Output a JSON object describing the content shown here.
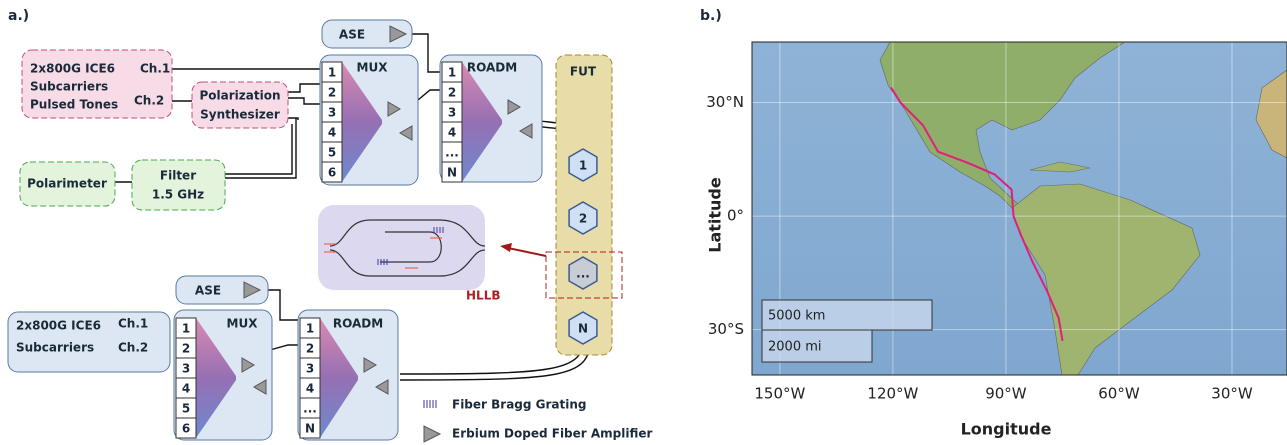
{
  "panel_a": {
    "label": "a.)",
    "transmitter_top": {
      "lines": [
        "2x800G ICE6",
        "Subcarriers",
        "Pulsed Tones"
      ],
      "ch1": "Ch.1",
      "ch2": "Ch.2"
    },
    "polarization": [
      "Polarization",
      "Synthesizer"
    ],
    "polarimeter": "Polarimeter",
    "filter": [
      "Filter",
      "1.5 GHz"
    ],
    "ase_top": "ASE",
    "mux_top": {
      "label": "MUX",
      "ports": [
        "1",
        "2",
        "3",
        "4",
        "5",
        "6"
      ]
    },
    "roadm_top": {
      "label": "ROADM",
      "ports": [
        "1",
        "2",
        "3",
        "4",
        "...",
        "N"
      ]
    },
    "fut": {
      "label": "FUT",
      "spans": [
        "1",
        "2",
        "...",
        "N"
      ]
    },
    "hllb": "HLLB",
    "transmitter_bottom": {
      "lines": [
        "2x800G ICE6",
        "Subcarriers"
      ],
      "ch1": "Ch.1",
      "ch2": "Ch.2"
    },
    "ase_bottom": "ASE",
    "mux_bottom": {
      "label": "MUX",
      "ports": [
        "1",
        "2",
        "3",
        "4",
        "5",
        "6"
      ]
    },
    "roadm_bottom": {
      "label": "ROADM",
      "ports": [
        "1",
        "2",
        "3",
        "4",
        "...",
        "N"
      ]
    },
    "legend": [
      "Fiber Bragg Grating",
      "Erbium Doped Fiber Amplifier"
    ]
  },
  "panel_b": {
    "label": "b.)",
    "x_label": "Longitude",
    "y_label": "Latitude",
    "xlim": [
      -157.4,
      -15.4
    ],
    "ylim": [
      -42,
      46
    ],
    "xticks": [
      {
        "value": -150,
        "label": "150°W"
      },
      {
        "value": -120,
        "label": "120°W"
      },
      {
        "value": -90,
        "label": "90°W"
      },
      {
        "value": -60,
        "label": "60°W"
      },
      {
        "value": -30,
        "label": "30°W"
      }
    ],
    "yticks": [
      {
        "value": 30,
        "label": "30°N"
      },
      {
        "value": 0,
        "label": "0°"
      },
      {
        "value": -30,
        "label": "30°S"
      }
    ],
    "scale_bar": [
      "5000 km",
      "2000 mi"
    ],
    "route": {
      "color": "#e0207a",
      "lon": [
        -120.5,
        -118,
        -112,
        -108,
        -100,
        -93,
        -88.5,
        -88,
        -86,
        -83,
        -79,
        -76,
        -75
      ],
      "lat": [
        34,
        30,
        24,
        17,
        14,
        11,
        7,
        0,
        -5,
        -12,
        -20,
        -27,
        -33
      ]
    }
  }
}
